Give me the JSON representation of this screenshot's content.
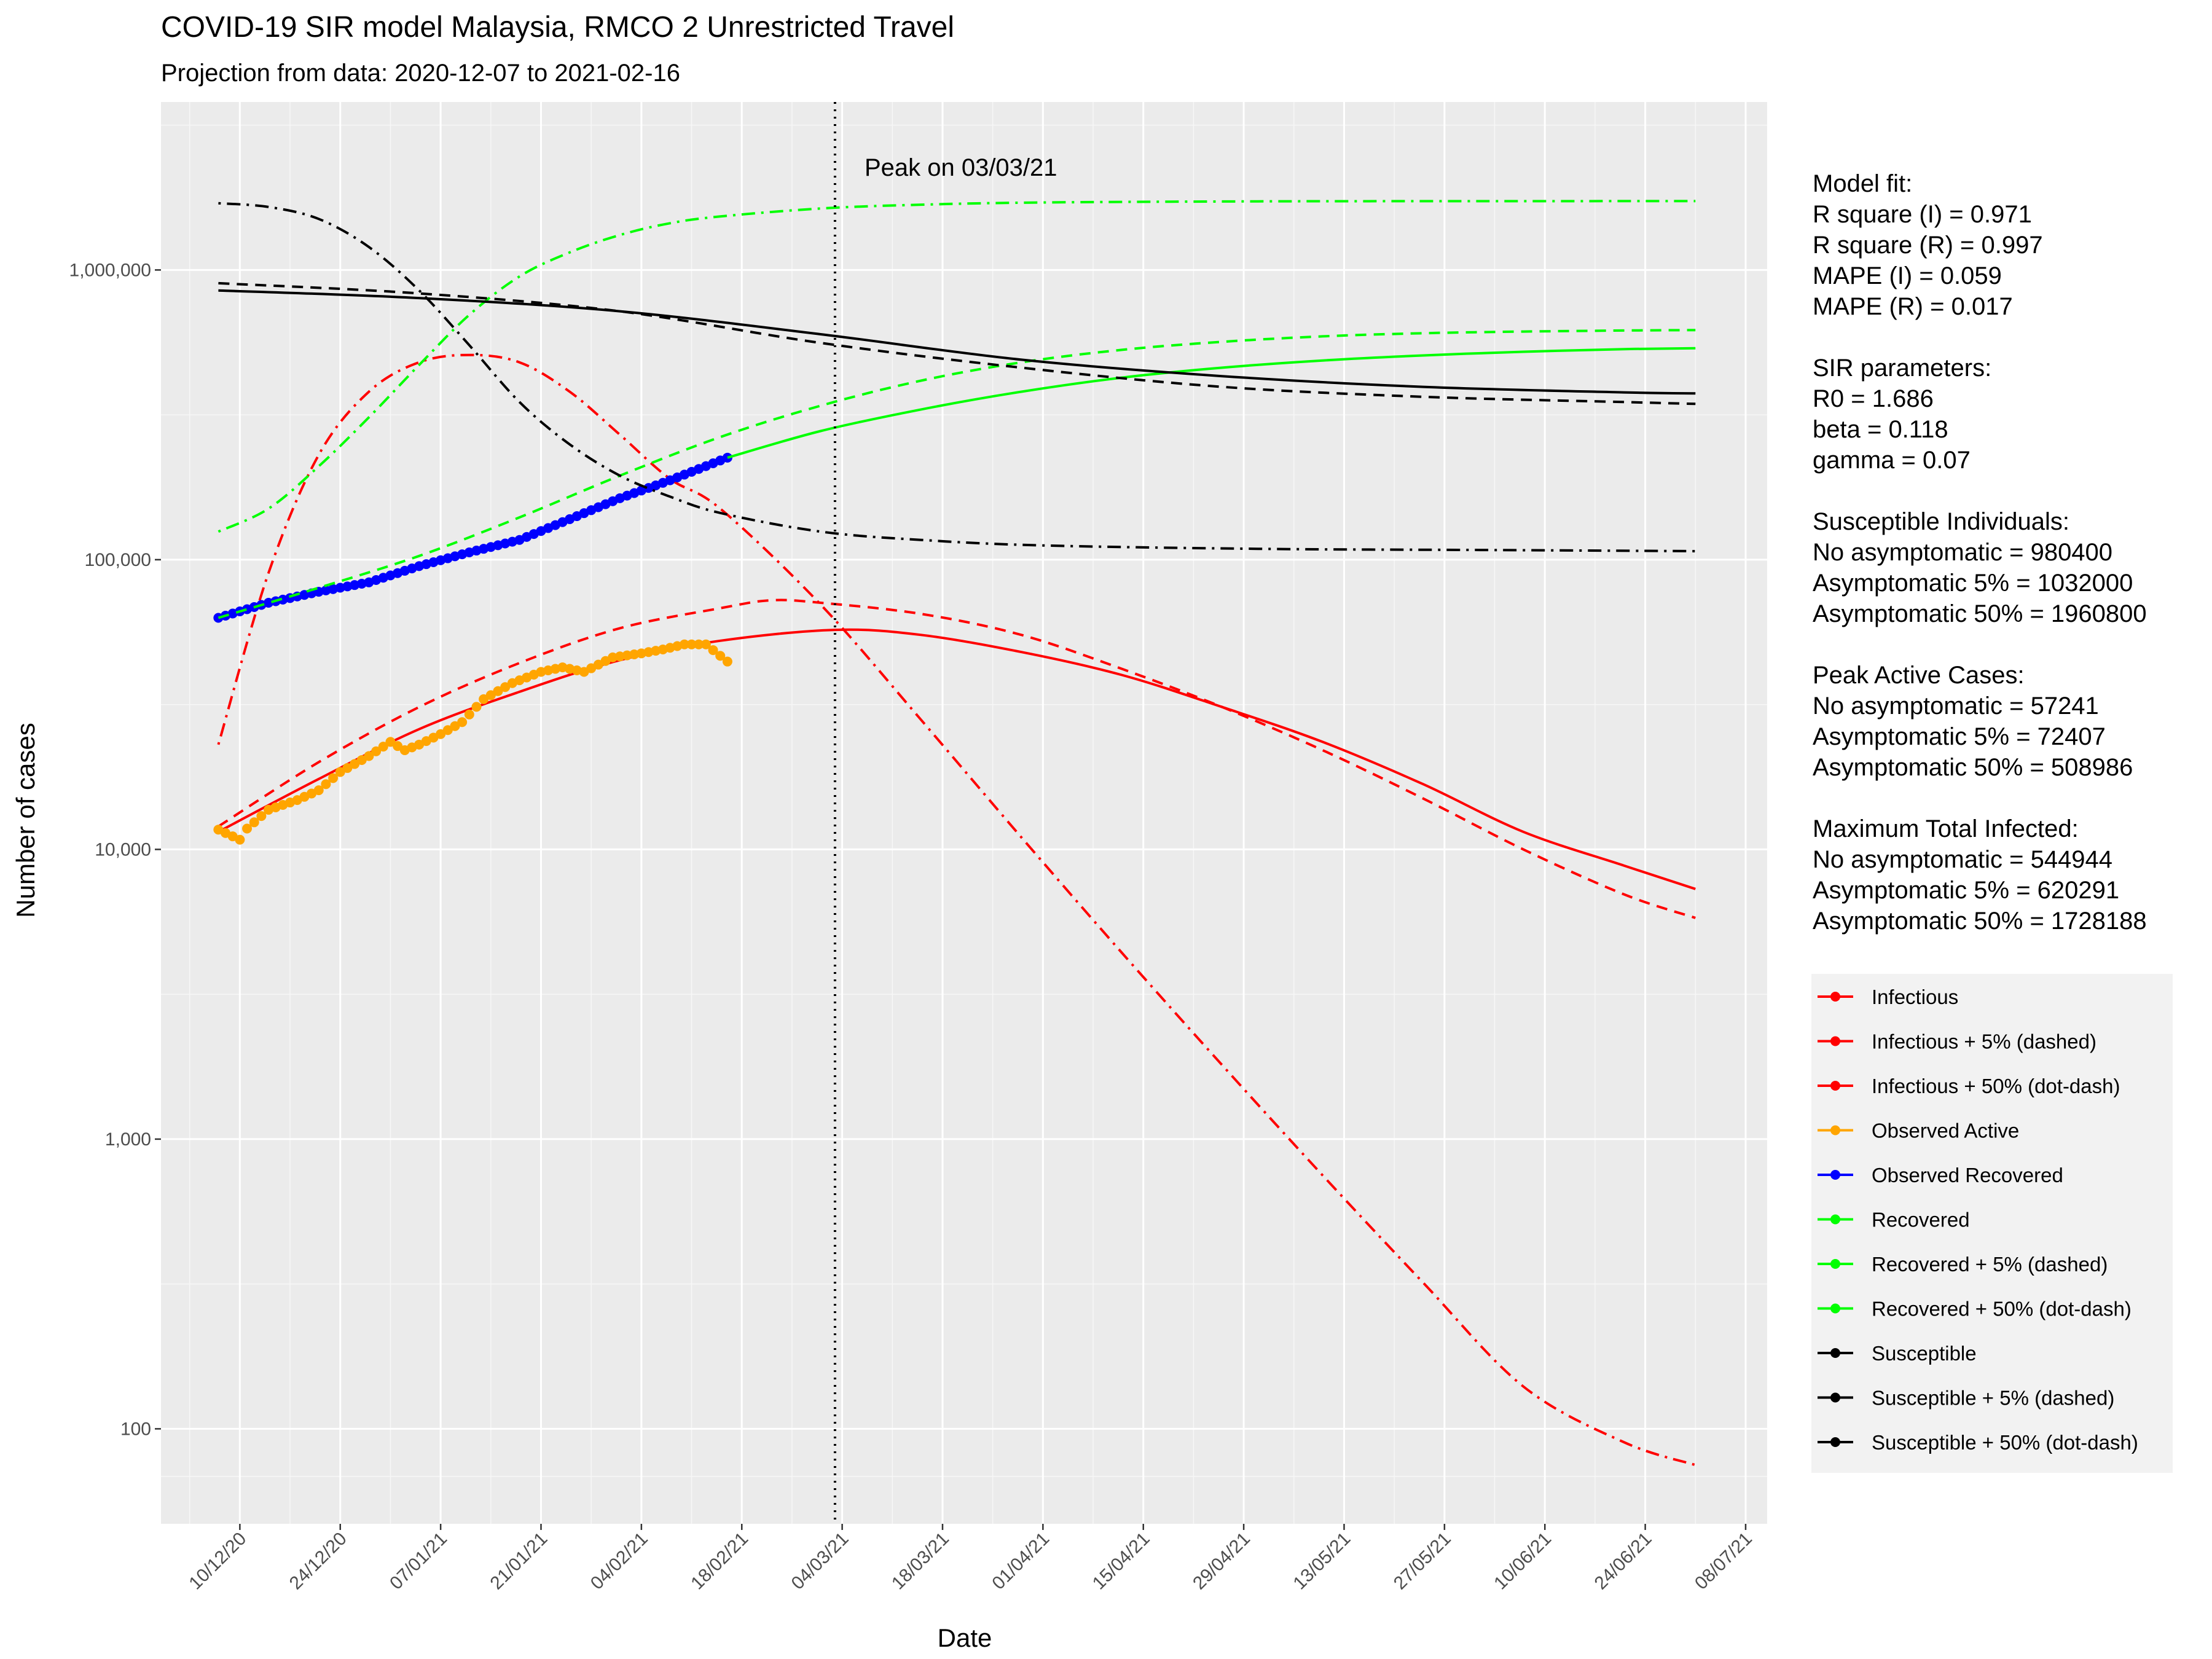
{
  "chart_data": {
    "type": "line",
    "title": "COVID-19 SIR model Malaysia, RMCO 2 Unrestricted Travel",
    "subtitle": "Projection from data: 2020-12-07 to 2021-02-16",
    "xlabel": "Date",
    "ylabel": "Number of cases",
    "y_scale": "log10",
    "ylim": [
      47,
      3800000
    ],
    "xlim": [
      "2020-11-29",
      "2021-07-11"
    ],
    "x_ticks": [
      "10/12/20",
      "24/12/20",
      "07/01/21",
      "21/01/21",
      "04/02/21",
      "18/02/21",
      "04/03/21",
      "18/03/21",
      "01/04/21",
      "15/04/21",
      "29/04/21",
      "13/05/21",
      "27/05/21",
      "10/06/21",
      "24/06/21",
      "08/07/21"
    ],
    "x_tick_dates": [
      "2020-12-10",
      "2020-12-24",
      "2021-01-07",
      "2021-01-21",
      "2021-02-04",
      "2021-02-18",
      "2021-03-04",
      "2021-03-18",
      "2021-04-01",
      "2021-04-15",
      "2021-04-29",
      "2021-05-13",
      "2021-05-27",
      "2021-06-10",
      "2021-06-24",
      "2021-07-08"
    ],
    "y_ticks": [
      {
        "value": 100,
        "label": "100"
      },
      {
        "value": 1000,
        "label": "1,000"
      },
      {
        "value": 10000,
        "label": "10,000"
      },
      {
        "value": 100000,
        "label": "100,000"
      },
      {
        "value": 1000000,
        "label": "1,000,000"
      }
    ],
    "grid": true,
    "legend_position": "right",
    "peak_line": {
      "date": "2021-03-03",
      "label": "Peak on 03/03/21"
    },
    "series": [
      {
        "name": "Infectious",
        "color": "#ff0000",
        "style": "solid",
        "x": [
          "2020-12-07",
          "2020-12-21",
          "2021-01-04",
          "2021-01-18",
          "2021-02-01",
          "2021-02-15",
          "2021-03-03",
          "2021-03-15",
          "2021-03-29",
          "2021-04-12",
          "2021-04-26",
          "2021-05-10",
          "2021-05-24",
          "2021-06-07",
          "2021-06-21",
          "2021-07-01"
        ],
        "y": [
          11500,
          17500,
          26000,
          35000,
          45000,
          52500,
          57241,
          55000,
          48000,
          40000,
          31000,
          23500,
          16800,
          11500,
          8800,
          7300
        ]
      },
      {
        "name": "Infectious + 5% (dashed)",
        "color": "#ff0000",
        "style": "dashed",
        "x": [
          "2020-12-07",
          "2020-12-21",
          "2021-01-04",
          "2021-01-18",
          "2021-02-01",
          "2021-02-15",
          "2021-02-22",
          "2021-03-01",
          "2021-03-15",
          "2021-03-29",
          "2021-04-12",
          "2021-04-26",
          "2021-05-10",
          "2021-05-24",
          "2021-06-07",
          "2021-06-21",
          "2021-07-01"
        ],
        "y": [
          12000,
          20000,
          31000,
          44000,
          58000,
          68000,
          72407,
          71000,
          65000,
          55000,
          42000,
          31000,
          22000,
          15000,
          10000,
          7000,
          5800
        ]
      },
      {
        "name": "Infectious + 50% (dot-dash)",
        "color": "#ff0000",
        "style": "dotdash",
        "x": [
          "2020-12-07",
          "2020-12-14",
          "2020-12-21",
          "2020-12-28",
          "2021-01-04",
          "2021-01-11",
          "2021-01-18",
          "2021-01-25",
          "2021-02-01",
          "2021-02-08",
          "2021-02-15",
          "2021-03-01",
          "2021-03-15",
          "2021-03-29",
          "2021-04-12",
          "2021-04-26",
          "2021-05-10",
          "2021-05-24",
          "2021-06-07",
          "2021-06-21",
          "2021-07-01"
        ],
        "y": [
          23000,
          90000,
          230000,
          380000,
          480000,
          508986,
          480000,
          380000,
          270000,
          190000,
          150000,
          70000,
          28000,
          11000,
          4400,
          1800,
          750,
          320,
          140,
          90,
          75
        ]
      },
      {
        "name": "Observed Active",
        "color": "#ffa500",
        "style": "points",
        "x": [
          "2020-12-07",
          "2020-12-10",
          "2020-12-11",
          "2020-12-14",
          "2020-12-18",
          "2020-12-21",
          "2020-12-24",
          "2020-12-28",
          "2020-12-31",
          "2021-01-02",
          "2021-01-04",
          "2021-01-07",
          "2021-01-10",
          "2021-01-13",
          "2021-01-17",
          "2021-01-21",
          "2021-01-24",
          "2021-01-27",
          "2021-01-31",
          "2021-02-04",
          "2021-02-07",
          "2021-02-10",
          "2021-02-13",
          "2021-02-16"
        ],
        "y": [
          11700,
          10800,
          11800,
          13700,
          14800,
          16000,
          18500,
          21000,
          23500,
          22000,
          23000,
          25000,
          27500,
          33000,
          37500,
          41000,
          42500,
          41000,
          46000,
          47500,
          49000,
          51000,
          51000,
          44500
        ]
      },
      {
        "name": "Observed Recovered",
        "color": "#0000ff",
        "style": "points",
        "x": [
          "2020-12-07",
          "2020-12-14",
          "2020-12-21",
          "2020-12-28",
          "2021-01-04",
          "2021-01-11",
          "2021-01-18",
          "2021-01-25",
          "2021-02-01",
          "2021-02-08",
          "2021-02-16"
        ],
        "y": [
          63000,
          71000,
          77500,
          83500,
          95000,
          106000,
          117000,
          138000,
          163000,
          188000,
          225000
        ]
      },
      {
        "name": "Recovered",
        "color": "#00ff00",
        "style": "solid",
        "x": [
          "2021-02-16",
          "2021-03-01",
          "2021-03-15",
          "2021-03-29",
          "2021-04-12",
          "2021-04-26",
          "2021-05-10",
          "2021-05-24",
          "2021-06-07",
          "2021-06-21",
          "2021-07-01"
        ],
        "y": [
          225000,
          278000,
          330000,
          380000,
          425000,
          460000,
          487000,
          507000,
          522000,
          533000,
          537000
        ]
      },
      {
        "name": "Recovered + 5% (dashed)",
        "color": "#00ff00",
        "style": "dashed",
        "x": [
          "2020-12-07",
          "2020-12-21",
          "2021-01-04",
          "2021-01-18",
          "2021-02-01",
          "2021-02-15",
          "2021-03-01",
          "2021-03-15",
          "2021-03-29",
          "2021-04-12",
          "2021-04-26",
          "2021-05-10",
          "2021-05-24",
          "2021-06-07",
          "2021-06-21",
          "2021-07-01"
        ],
        "y": [
          63000,
          80000,
          103000,
          140000,
          195000,
          265000,
          340000,
          415000,
          480000,
          530000,
          565000,
          590000,
          605000,
          613000,
          618000,
          620291
        ]
      },
      {
        "name": "Recovered + 50% (dot-dash)",
        "color": "#00ff00",
        "style": "dotdash",
        "x": [
          "2020-12-07",
          "2020-12-14",
          "2020-12-21",
          "2020-12-28",
          "2021-01-04",
          "2021-01-11",
          "2021-01-18",
          "2021-01-25",
          "2021-02-01",
          "2021-02-08",
          "2021-02-15",
          "2021-03-01",
          "2021-03-15",
          "2021-04-01",
          "2021-05-01",
          "2021-06-01",
          "2021-07-01"
        ],
        "y": [
          125000,
          150000,
          210000,
          310000,
          470000,
          700000,
          950000,
          1150000,
          1320000,
          1450000,
          1530000,
          1630000,
          1680000,
          1710000,
          1725000,
          1728000,
          1728188
        ]
      },
      {
        "name": "Susceptible",
        "color": "#000000",
        "style": "solid",
        "x": [
          "2020-12-07",
          "2021-01-04",
          "2021-02-01",
          "2021-03-01",
          "2021-03-29",
          "2021-04-26",
          "2021-05-24",
          "2021-06-21",
          "2021-07-01"
        ],
        "y": [
          850000,
          800000,
          720000,
          600000,
          490000,
          430000,
          395000,
          378000,
          375000
        ]
      },
      {
        "name": "Susceptible + 5% (dashed)",
        "color": "#000000",
        "style": "dashed",
        "x": [
          "2020-12-07",
          "2021-01-04",
          "2021-02-01",
          "2021-03-01",
          "2021-03-29",
          "2021-04-26",
          "2021-05-24",
          "2021-06-21",
          "2021-07-01"
        ],
        "y": [
          900000,
          830000,
          720000,
          560000,
          460000,
          395000,
          365000,
          350000,
          345000
        ]
      },
      {
        "name": "Susceptible + 50% (dot-dash)",
        "color": "#000000",
        "style": "dotdash",
        "x": [
          "2020-12-07",
          "2020-12-14",
          "2020-12-21",
          "2020-12-28",
          "2021-01-04",
          "2021-01-11",
          "2021-01-18",
          "2021-01-25",
          "2021-02-01",
          "2021-02-08",
          "2021-02-15",
          "2021-03-01",
          "2021-03-15",
          "2021-04-01",
          "2021-05-01",
          "2021-06-01",
          "2021-07-01"
        ],
        "y": [
          1700000,
          1650000,
          1500000,
          1200000,
          850000,
          550000,
          350000,
          250000,
          195000,
          165000,
          145000,
          125000,
          117000,
          112000,
          109000,
          108000,
          107000
        ]
      }
    ]
  },
  "info_panel": [
    "Model fit:",
    "R square (I) = 0.971",
    "R square (R) = 0.997",
    "MAPE (I) = 0.059",
    "MAPE (R) = 0.017",
    "",
    "SIR parameters:",
    "R0 = 1.686",
    "beta = 0.118",
    "gamma = 0.07",
    "",
    "Susceptible Individuals:",
    "No asymptomatic = 980400",
    "Asymptomatic 5% = 1032000",
    "Asymptomatic 50% = 1960800",
    "",
    "Peak Active Cases:",
    "No asymptomatic = 57241",
    "Asymptomatic 5% = 72407",
    "Asymptomatic 50% = 508986",
    "",
    "Maximum Total Infected:",
    "No asymptomatic = 544944",
    "Asymptomatic 5% = 620291",
    "Asymptomatic 50% = 1728188"
  ],
  "legend": {
    "items": [
      {
        "label": "Infectious",
        "color": "#ff0000"
      },
      {
        "label": "Infectious + 5% (dashed)",
        "color": "#ff0000"
      },
      {
        "label": "Infectious + 50% (dot-dash)",
        "color": "#ff0000"
      },
      {
        "label": "Observed Active",
        "color": "#ffa500"
      },
      {
        "label": "Observed Recovered",
        "color": "#0000ff"
      },
      {
        "label": "Recovered",
        "color": "#00ff00"
      },
      {
        "label": "Recovered + 5% (dashed)",
        "color": "#00ff00"
      },
      {
        "label": "Recovered + 50% (dot-dash)",
        "color": "#00ff00"
      },
      {
        "label": "Susceptible",
        "color": "#000000"
      },
      {
        "label": "Susceptible + 5% (dashed)",
        "color": "#000000"
      },
      {
        "label": "Susceptible + 50% (dot-dash)",
        "color": "#000000"
      }
    ]
  }
}
